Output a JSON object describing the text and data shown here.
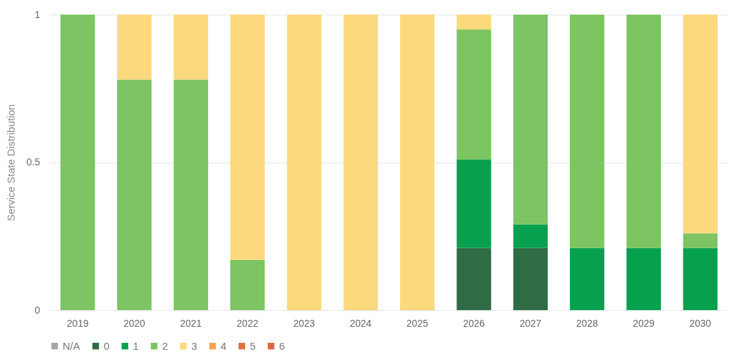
{
  "chart_data": {
    "type": "bar",
    "stacked": true,
    "ylabel": "Service State Distribution",
    "categories": [
      "2019",
      "2020",
      "2021",
      "2022",
      "2023",
      "2024",
      "2025",
      "2026",
      "2027",
      "2028",
      "2029",
      "2030"
    ],
    "series": [
      {
        "name": "N/A",
        "color": "#a5a5a5",
        "values": [
          0,
          0,
          0,
          0,
          0,
          0,
          0,
          0,
          0,
          0,
          0,
          0
        ]
      },
      {
        "name": "0",
        "color": "#2f6b43",
        "values": [
          0,
          0,
          0,
          0,
          0,
          0,
          0,
          0.21,
          0.21,
          0,
          0,
          0
        ]
      },
      {
        "name": "1",
        "color": "#07a04f",
        "values": [
          0,
          0,
          0,
          0,
          0,
          0,
          0,
          0.3,
          0.08,
          0.21,
          0.21,
          0.21
        ]
      },
      {
        "name": "2",
        "color": "#7dc462",
        "values": [
          1,
          0.78,
          0.78,
          0.17,
          0,
          0,
          0,
          0.44,
          0.71,
          0.79,
          0.79,
          0.05
        ]
      },
      {
        "name": "3",
        "color": "#fcd97c",
        "values": [
          0,
          0.22,
          0.22,
          0.83,
          1,
          1,
          1,
          0.05,
          0,
          0,
          0,
          0.74
        ]
      },
      {
        "name": "4",
        "color": "#f5a24e",
        "values": [
          0,
          0,
          0,
          0,
          0,
          0,
          0,
          0,
          0,
          0,
          0,
          0
        ]
      },
      {
        "name": "5",
        "color": "#e0703c",
        "values": [
          0,
          0,
          0,
          0,
          0,
          0,
          0,
          0,
          0,
          0,
          0,
          0
        ]
      },
      {
        "name": "6",
        "color": "#d9683e",
        "values": [
          0,
          0,
          0,
          0,
          0,
          0,
          0,
          0,
          0,
          0,
          0,
          0
        ]
      }
    ],
    "ylim": [
      0,
      1
    ],
    "yticks": [
      0,
      0.5,
      1
    ],
    "grid": "y",
    "legend": "bottom"
  }
}
